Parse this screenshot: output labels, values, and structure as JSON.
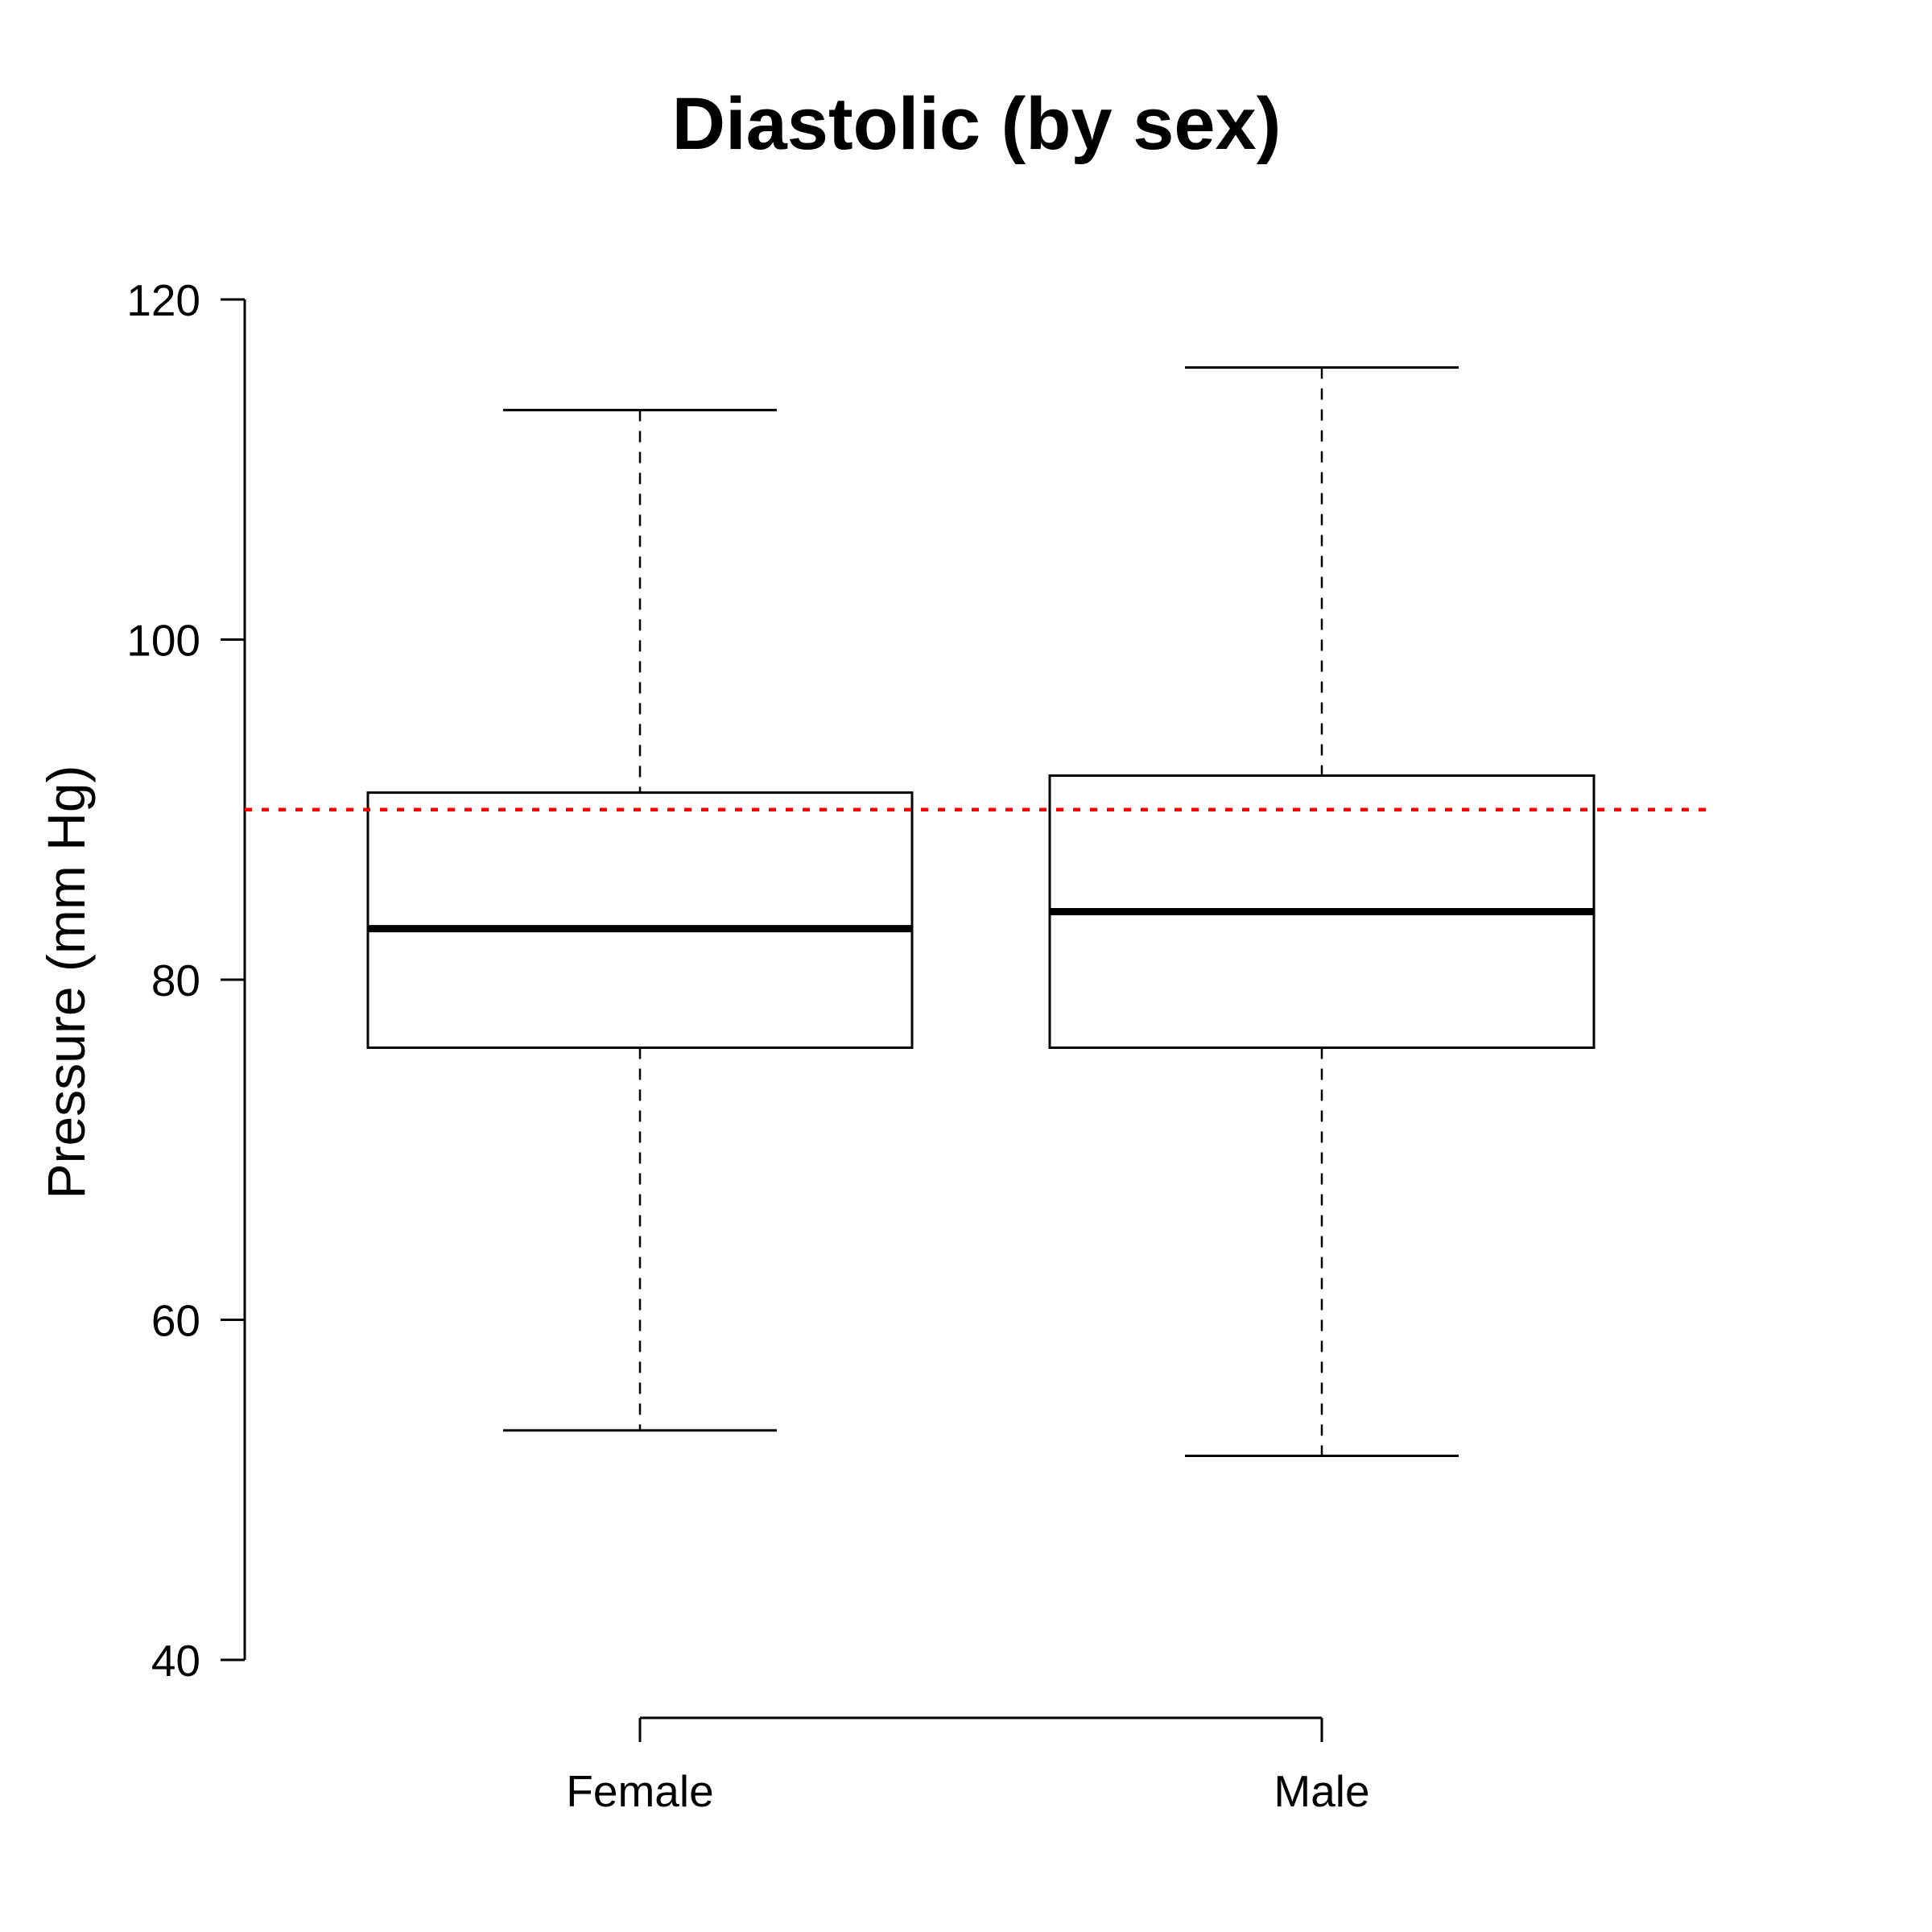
{
  "chart_data": {
    "type": "boxplot",
    "title": "Diastolic (by sex)",
    "xlabel": "",
    "ylabel": "Pressure (mm Hg)",
    "ylim": [
      40,
      120
    ],
    "yticks": [
      40,
      60,
      80,
      100,
      120
    ],
    "categories": [
      "Female",
      "Male"
    ],
    "boxes": [
      {
        "category": "Female",
        "whisker_low": 53.5,
        "q1": 76,
        "median": 83,
        "q3": 91,
        "whisker_high": 113.5
      },
      {
        "category": "Male",
        "whisker_low": 52,
        "q1": 76,
        "median": 84,
        "q3": 92,
        "whisker_high": 116
      }
    ],
    "reference_line": {
      "y": 90,
      "style": "dotted",
      "color": "#ff0000"
    },
    "grid": false
  }
}
